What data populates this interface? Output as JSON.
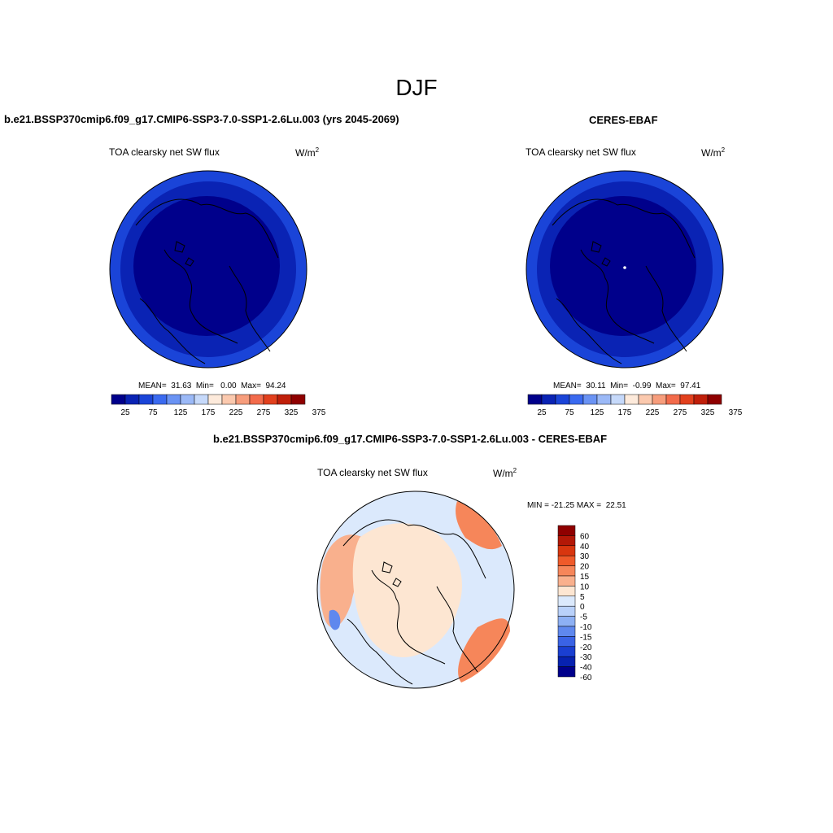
{
  "season": "DJF",
  "colors": {
    "flux_scale": [
      "#00008b",
      "#0a23b4",
      "#1a44d8",
      "#3a6af0",
      "#6a93f4",
      "#9bb9f7",
      "#c6d9fa",
      "#fdeadb",
      "#fbc9ae",
      "#f79d7c",
      "#f36b4b",
      "#e2401d",
      "#c01f0a",
      "#8f0000"
    ],
    "diff_scale": [
      "#8f0000",
      "#b31807",
      "#d8360f",
      "#ef5a2a",
      "#f6865a",
      "#f9b08d",
      "#fde6d2",
      "#dbe9fc",
      "#b9d1fa",
      "#8db0f4",
      "#5f88ee",
      "#3a63e5",
      "#1a3fd1",
      "#0722b0",
      "#00008b"
    ]
  },
  "panels": {
    "model": {
      "title": "b.e21.BSSP370cmip6.f09_g17.CMIP6-SSP3-7.0-SSP1-2.6Lu.003 (yrs 2045-2069)",
      "field": "TOA clearsky net SW flux",
      "units": "W/m",
      "units_exp": "2",
      "stats": "MEAN=  31.63  Min=   0.00  Max=  94.24",
      "colorbar_ticks": [
        "25",
        "75",
        "125",
        "175",
        "225",
        "275",
        "325",
        "375"
      ]
    },
    "obs": {
      "title": "CERES-EBAF",
      "field": "TOA clearsky net SW flux",
      "units": "W/m",
      "units_exp": "2",
      "stats": "MEAN=  30.11  Min=  -0.99  Max=  97.41",
      "colorbar_ticks": [
        "25",
        "75",
        "125",
        "175",
        "225",
        "275",
        "325",
        "375"
      ]
    },
    "diff": {
      "title": "b.e21.BSSP370cmip6.f09_g17.CMIP6-SSP3-7.0-SSP1-2.6Lu.003 - CERES-EBAF",
      "field": "TOA clearsky net SW flux",
      "units": "W/m",
      "units_exp": "2",
      "stats": "MIN = -21.25 MAX =  22.51",
      "colorbar_ticks": [
        "60",
        "40",
        "30",
        "20",
        "15",
        "10",
        "5",
        "0",
        "-5",
        "-10",
        "-15",
        "-20",
        "-30",
        "-40",
        "-60"
      ]
    }
  }
}
